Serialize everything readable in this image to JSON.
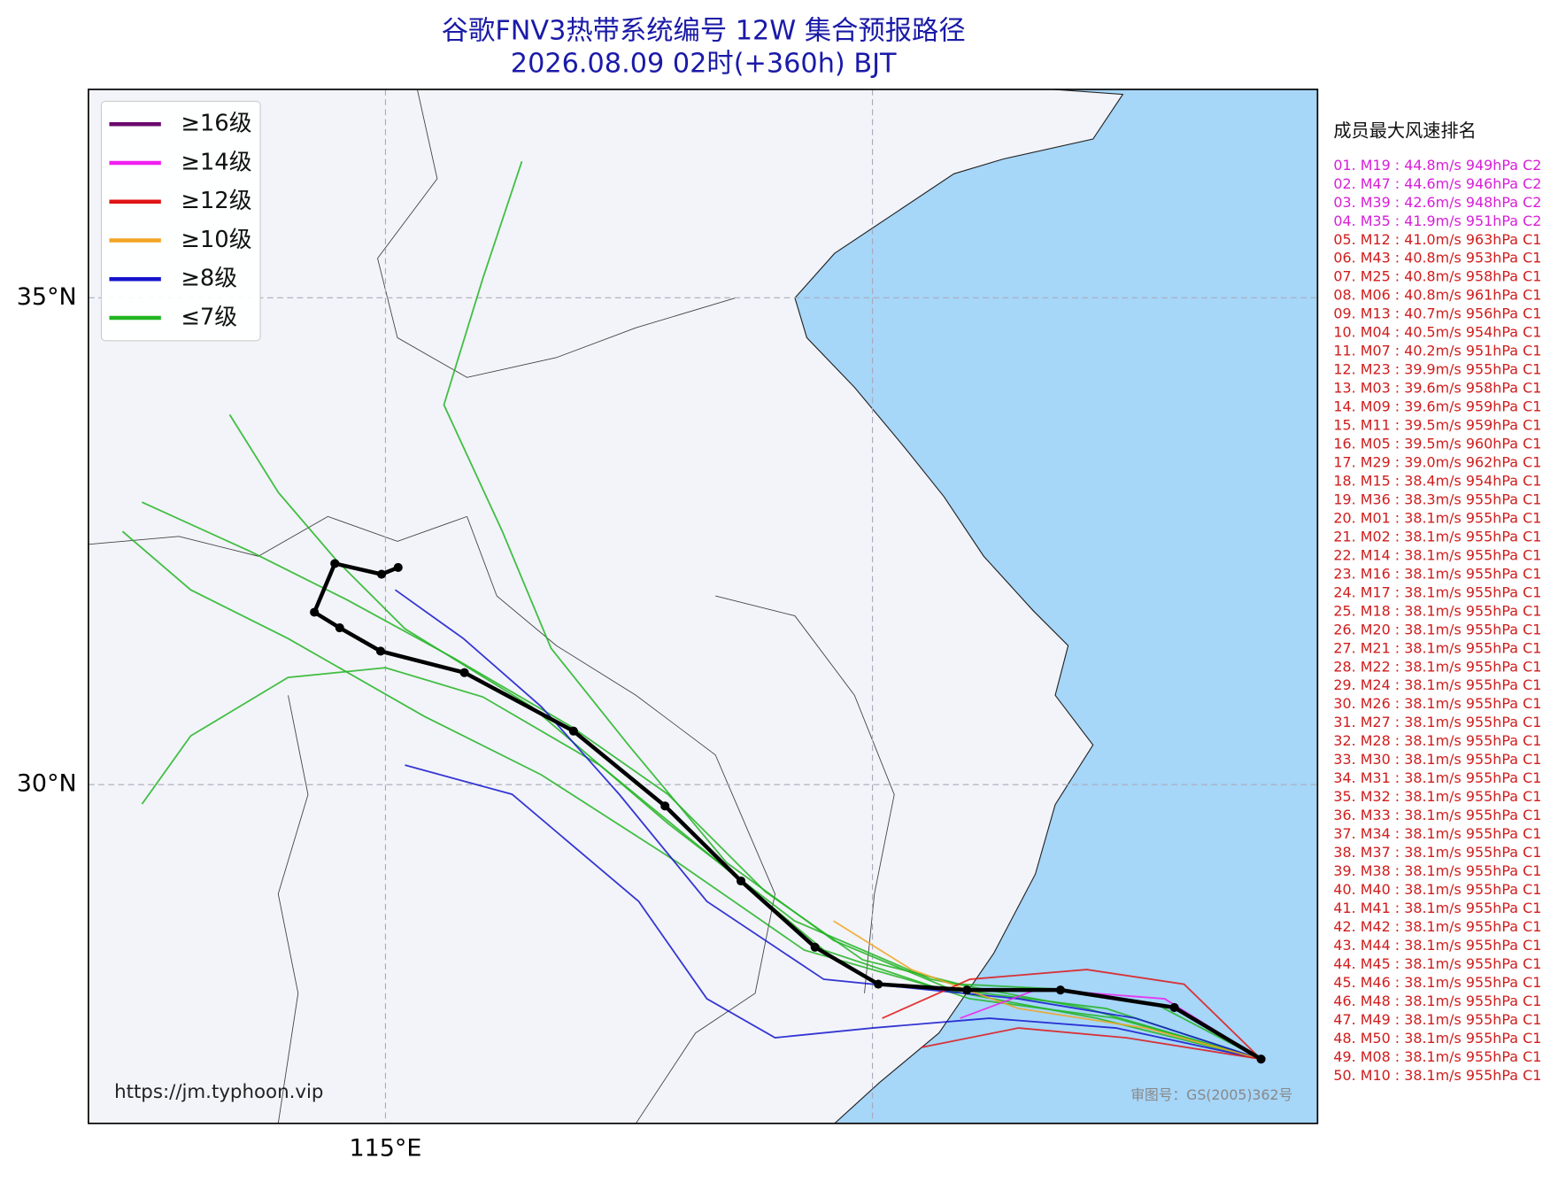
{
  "map": {
    "title": [
      "谷歌FNV3热带系统编号 12W 集合预报路径",
      "2026.08.09 02时(+360h) BJT"
    ],
    "title_color": "#1a1aa8",
    "xlim": [
      111.95,
      124.57
    ],
    "ylim": [
      26.52,
      37.14
    ],
    "land_color": "#f2f4f9",
    "sea_color": "#a6d6f8",
    "grid": true,
    "xticks": [
      {
        "value": 115,
        "label": "115°E"
      },
      {
        "value": 120,
        "label": null
      }
    ],
    "yticks": [
      {
        "value": 35,
        "label": "35°N"
      },
      {
        "value": 30,
        "label": "30°N"
      }
    ],
    "legend": {
      "corner": "upper left",
      "items": [
        {
          "label": "≥16级",
          "color": "#6b0a6e"
        },
        {
          "label": "≥14级",
          "color": "#f01ef0"
        },
        {
          "label": "≥12级",
          "color": "#e01414"
        },
        {
          "label": "≥10级",
          "color": "#f2a422"
        },
        {
          "label": "≥8级",
          "color": "#1414cc"
        },
        {
          "label": "≤7级",
          "color": "#22b422"
        }
      ]
    },
    "mean_track": {
      "color": "#000000",
      "lon": [
        115.13,
        114.96,
        114.48,
        114.27,
        114.53,
        114.95,
        115.81,
        116.93,
        117.87,
        118.65,
        119.41,
        120.06,
        120.97,
        121.93,
        123.1,
        123.99
      ],
      "lat": [
        32.23,
        32.16,
        32.27,
        31.77,
        31.61,
        31.37,
        31.15,
        30.55,
        29.78,
        29.01,
        28.33,
        27.95,
        27.89,
        27.89,
        27.71,
        27.18
      ]
    },
    "member_tracks": [
      {
        "color": "#22b422",
        "lon": [
          123.99,
          122.9,
          121.9,
          120.9,
          119.9,
          118.9,
          117.9,
          116.9,
          115.7,
          114.6,
          113.6,
          112.5
        ],
        "lat": [
          27.18,
          27.75,
          27.9,
          27.95,
          28.2,
          28.9,
          29.9,
          30.6,
          31.3,
          31.9,
          32.4,
          32.9
        ]
      },
      {
        "color": "#22b422",
        "lon": [
          123.99,
          122.5,
          121.0,
          119.5,
          118.3,
          117.2,
          116.0,
          115.0,
          114.0,
          113.0,
          112.5
        ],
        "lat": [
          27.18,
          27.6,
          27.8,
          28.3,
          29.3,
          30.2,
          30.9,
          31.2,
          31.1,
          30.5,
          29.8
        ]
      },
      {
        "color": "#22b422",
        "lon": [
          123.99,
          122.4,
          120.8,
          119.6,
          118.5,
          117.5,
          116.7,
          116.2,
          115.6,
          116.0,
          116.4
        ],
        "lat": [
          27.18,
          27.7,
          27.9,
          28.4,
          29.2,
          30.4,
          31.4,
          32.6,
          33.9,
          35.2,
          36.4
        ]
      },
      {
        "color": "#22b422",
        "lon": [
          123.99,
          122.3,
          120.7,
          119.3,
          118.0,
          116.6,
          115.4,
          114.0,
          113.0,
          112.3
        ],
        "lat": [
          27.18,
          27.6,
          27.9,
          28.3,
          29.2,
          30.1,
          30.7,
          31.5,
          32.0,
          32.6
        ]
      },
      {
        "color": "#22b422",
        "lon": [
          123.99,
          122.2,
          120.6,
          119.2,
          117.9,
          116.5,
          115.2,
          114.5,
          113.9,
          113.4
        ],
        "lat": [
          27.18,
          27.7,
          28.0,
          28.6,
          29.6,
          30.8,
          31.6,
          32.3,
          33.0,
          33.8
        ]
      },
      {
        "color": "#1414cc",
        "lon": [
          123.99,
          122.7,
          121.5,
          120.5,
          119.5,
          118.3,
          117.4,
          116.6,
          115.8,
          115.1
        ],
        "lat": [
          27.18,
          27.6,
          27.8,
          27.9,
          28.0,
          28.8,
          29.9,
          30.8,
          31.5,
          32.0
        ]
      },
      {
        "color": "#1414cc",
        "lon": [
          123.99,
          122.5,
          121.2,
          120.0,
          119.0,
          118.3,
          117.6,
          116.3,
          115.2
        ],
        "lat": [
          27.18,
          27.5,
          27.6,
          27.5,
          27.4,
          27.8,
          28.8,
          29.9,
          30.2
        ]
      },
      {
        "color": "#f2a422",
        "lon": [
          123.99,
          122.8,
          121.5,
          120.4,
          119.6
        ],
        "lat": [
          27.18,
          27.5,
          27.7,
          28.1,
          28.6
        ]
      },
      {
        "color": "#e01414",
        "lon": [
          123.99,
          123.2,
          122.2,
          121.0,
          120.1
        ],
        "lat": [
          27.18,
          27.95,
          28.1,
          28.0,
          27.6
        ]
      },
      {
        "color": "#e01414",
        "lon": [
          123.99,
          122.6,
          121.5,
          120.5
        ],
        "lat": [
          27.18,
          27.4,
          27.5,
          27.3
        ]
      },
      {
        "color": "#f01ef0",
        "lon": [
          123.99,
          123.0,
          121.7,
          120.9
        ],
        "lat": [
          27.18,
          27.8,
          27.9,
          27.6
        ]
      }
    ],
    "url": "https://jm.typhoon.vip",
    "review_number": "审图号：GS(2005)362号",
    "ranking": {
      "title": "成员最大风速排名",
      "entries": [
        {
          "text": "01. M19 : 44.8m/s 949hPa C2",
          "color": "#d81ed8"
        },
        {
          "text": "02. M47 : 44.6m/s 946hPa C2",
          "color": "#d81ed8"
        },
        {
          "text": "03. M39 : 42.6m/s 948hPa C2",
          "color": "#d81ed8"
        },
        {
          "text": "04. M35 : 41.9m/s 951hPa C2",
          "color": "#d81ed8"
        },
        {
          "text": "05. M12 : 41.0m/s 963hPa C1",
          "color": "#d01c1c"
        },
        {
          "text": "06. M43 : 40.8m/s 953hPa C1",
          "color": "#d01c1c"
        },
        {
          "text": "07. M25 : 40.8m/s 958hPa C1",
          "color": "#d01c1c"
        },
        {
          "text": "08. M06 : 40.8m/s 961hPa C1",
          "color": "#d01c1c"
        },
        {
          "text": "09. M13 : 40.7m/s 956hPa C1",
          "color": "#d01c1c"
        },
        {
          "text": "10. M04 : 40.5m/s 954hPa C1",
          "color": "#d01c1c"
        },
        {
          "text": "11. M07 : 40.2m/s 951hPa C1",
          "color": "#d01c1c"
        },
        {
          "text": "12. M23 : 39.9m/s 955hPa C1",
          "color": "#d01c1c"
        },
        {
          "text": "13. M03 : 39.6m/s 958hPa C1",
          "color": "#d01c1c"
        },
        {
          "text": "14. M09 : 39.6m/s 959hPa C1",
          "color": "#d01c1c"
        },
        {
          "text": "15. M11 : 39.5m/s 959hPa C1",
          "color": "#d01c1c"
        },
        {
          "text": "16. M05 : 39.5m/s 960hPa C1",
          "color": "#d01c1c"
        },
        {
          "text": "17. M29 : 39.0m/s 962hPa C1",
          "color": "#d01c1c"
        },
        {
          "text": "18. M15 : 38.4m/s 954hPa C1",
          "color": "#d01c1c"
        },
        {
          "text": "19. M36 : 38.3m/s 955hPa C1",
          "color": "#d01c1c"
        },
        {
          "text": "20. M01 : 38.1m/s 955hPa C1",
          "color": "#d01c1c"
        },
        {
          "text": "21. M02 : 38.1m/s 955hPa C1",
          "color": "#d01c1c"
        },
        {
          "text": "22. M14 : 38.1m/s 955hPa C1",
          "color": "#d01c1c"
        },
        {
          "text": "23. M16 : 38.1m/s 955hPa C1",
          "color": "#d01c1c"
        },
        {
          "text": "24. M17 : 38.1m/s 955hPa C1",
          "color": "#d01c1c"
        },
        {
          "text": "25. M18 : 38.1m/s 955hPa C1",
          "color": "#d01c1c"
        },
        {
          "text": "26. M20 : 38.1m/s 955hPa C1",
          "color": "#d01c1c"
        },
        {
          "text": "27. M21 : 38.1m/s 955hPa C1",
          "color": "#d01c1c"
        },
        {
          "text": "28. M22 : 38.1m/s 955hPa C1",
          "color": "#d01c1c"
        },
        {
          "text": "29. M24 : 38.1m/s 955hPa C1",
          "color": "#d01c1c"
        },
        {
          "text": "30. M26 : 38.1m/s 955hPa C1",
          "color": "#d01c1c"
        },
        {
          "text": "31. M27 : 38.1m/s 955hPa C1",
          "color": "#d01c1c"
        },
        {
          "text": "32. M28 : 38.1m/s 955hPa C1",
          "color": "#d01c1c"
        },
        {
          "text": "33. M30 : 38.1m/s 955hPa C1",
          "color": "#d01c1c"
        },
        {
          "text": "34. M31 : 38.1m/s 955hPa C1",
          "color": "#d01c1c"
        },
        {
          "text": "35. M32 : 38.1m/s 955hPa C1",
          "color": "#d01c1c"
        },
        {
          "text": "36. M33 : 38.1m/s 955hPa C1",
          "color": "#d01c1c"
        },
        {
          "text": "37. M34 : 38.1m/s 955hPa C1",
          "color": "#d01c1c"
        },
        {
          "text": "38. M37 : 38.1m/s 955hPa C1",
          "color": "#d01c1c"
        },
        {
          "text": "39. M38 : 38.1m/s 955hPa C1",
          "color": "#d01c1c"
        },
        {
          "text": "40. M40 : 38.1m/s 955hPa C1",
          "color": "#d01c1c"
        },
        {
          "text": "41. M41 : 38.1m/s 955hPa C1",
          "color": "#d01c1c"
        },
        {
          "text": "42. M42 : 38.1m/s 955hPa C1",
          "color": "#d01c1c"
        },
        {
          "text": "43. M44 : 38.1m/s 955hPa C1",
          "color": "#d01c1c"
        },
        {
          "text": "44. M45 : 38.1m/s 955hPa C1",
          "color": "#d01c1c"
        },
        {
          "text": "45. M46 : 38.1m/s 955hPa C1",
          "color": "#d01c1c"
        },
        {
          "text": "46. M48 : 38.1m/s 955hPa C1",
          "color": "#d01c1c"
        },
        {
          "text": "47. M49 : 38.1m/s 955hPa C1",
          "color": "#d01c1c"
        },
        {
          "text": "48. M50 : 38.1m/s 955hPa C1",
          "color": "#d01c1c"
        },
        {
          "text": "49. M08 : 38.1m/s 955hPa C1",
          "color": "#d01c1c"
        },
        {
          "text": "50. M10 : 38.1m/s 955hPa C1",
          "color": "#d01c1c"
        }
      ]
    }
  }
}
